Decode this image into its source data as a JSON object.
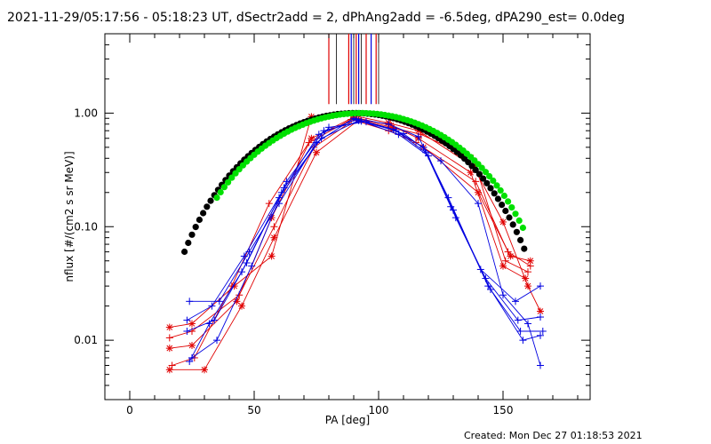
{
  "chart_data": {
    "type": "scatter",
    "title": "2021-11-29/05:17:56 - 05:18:23 UT, dSectr2add = 2, dPhAng2add = -6.5deg, dPA290_est=  0.0deg",
    "xlabel": "PA [deg]",
    "ylabel": "nflux [#/(cm2 s sr MeV)]",
    "xlim": [
      -10,
      185
    ],
    "ylim": [
      0.003,
      5
    ],
    "y_scale": "log",
    "grid": false,
    "x_ticks": [
      {
        "value": 0,
        "label": "0"
      },
      {
        "value": 50,
        "label": "50"
      },
      {
        "value": 100,
        "label": "100"
      },
      {
        "value": 150,
        "label": "150"
      }
    ],
    "y_ticks": [
      {
        "value": 0.01,
        "label": "0.01"
      },
      {
        "value": 0.1,
        "label": "0.10"
      },
      {
        "value": 1,
        "label": "1.00"
      }
    ],
    "vertical_lines": {
      "y_range": [
        1.2,
        5
      ],
      "red": [
        80,
        88,
        91,
        95,
        99
      ],
      "blue": [
        89,
        92,
        97
      ],
      "dark": [
        83,
        90,
        93,
        100
      ]
    },
    "colors": {
      "red": "#e00000",
      "blue": "#0000e0",
      "black": "#000000",
      "green": "#00e000"
    },
    "series": [
      {
        "color": "red",
        "x": [
          16,
          25,
          42,
          57,
          73,
          90,
          104,
          116,
          138,
          150,
          160,
          165
        ],
        "y": [
          0.013,
          0.014,
          0.03,
          0.055,
          0.93,
          0.95,
          0.82,
          0.7,
          0.34,
          0.11,
          0.03,
          0.018
        ]
      },
      {
        "color": "red",
        "x": [
          16,
          25,
          44,
          58,
          74,
          91,
          105,
          117,
          138,
          151,
          160
        ],
        "y": [
          0.0105,
          0.012,
          0.025,
          0.1,
          0.5,
          0.9,
          0.75,
          0.65,
          0.4,
          0.05,
          0.04
        ]
      },
      {
        "color": "red",
        "x": [
          16,
          25,
          43,
          57,
          73,
          90,
          105,
          116,
          137,
          150,
          159
        ],
        "y": [
          0.0085,
          0.009,
          0.022,
          0.12,
          0.6,
          0.92,
          0.78,
          0.6,
          0.3,
          0.045,
          0.035
        ]
      },
      {
        "color": "red",
        "x": [
          17,
          26,
          41,
          56,
          72,
          89,
          104,
          115,
          139,
          152,
          161
        ],
        "y": [
          0.006,
          0.007,
          0.03,
          0.16,
          0.55,
          0.88,
          0.7,
          0.55,
          0.25,
          0.06,
          0.045
        ]
      },
      {
        "color": "red",
        "x": [
          16,
          30,
          45,
          58,
          75,
          92,
          106,
          118,
          140,
          153,
          161
        ],
        "y": [
          0.0055,
          0.0055,
          0.02,
          0.08,
          0.45,
          0.87,
          0.72,
          0.5,
          0.2,
          0.055,
          0.05
        ]
      },
      {
        "color": "blue",
        "x": [
          24,
          36,
          48,
          60,
          75,
          90,
          104,
          116,
          128,
          141,
          155,
          165
        ],
        "y": [
          0.022,
          0.022,
          0.06,
          0.16,
          0.55,
          0.9,
          0.8,
          0.62,
          0.18,
          0.042,
          0.022,
          0.03
        ]
      },
      {
        "color": "blue",
        "x": [
          23,
          33,
          46,
          61,
          76,
          91,
          106,
          118,
          129,
          143,
          156,
          165
        ],
        "y": [
          0.015,
          0.02,
          0.055,
          0.2,
          0.65,
          0.88,
          0.72,
          0.5,
          0.15,
          0.035,
          0.015,
          0.016
        ]
      },
      {
        "color": "blue",
        "x": [
          23,
          34,
          47,
          62,
          77,
          92,
          107,
          119,
          130,
          144,
          157,
          166
        ],
        "y": [
          0.012,
          0.015,
          0.048,
          0.22,
          0.6,
          0.86,
          0.7,
          0.45,
          0.14,
          0.03,
          0.012,
          0.012
        ]
      },
      {
        "color": "blue",
        "x": [
          25,
          35,
          49,
          63,
          78,
          93,
          108,
          120,
          131,
          145,
          158,
          165
        ],
        "y": [
          0.007,
          0.01,
          0.045,
          0.25,
          0.7,
          0.85,
          0.65,
          0.42,
          0.12,
          0.028,
          0.01,
          0.011
        ]
      },
      {
        "color": "blue",
        "x": [
          24,
          32,
          45,
          60,
          80,
          95,
          110,
          125,
          140,
          150,
          160,
          165
        ],
        "y": [
          0.0065,
          0.014,
          0.04,
          0.18,
          0.75,
          0.84,
          0.66,
          0.38,
          0.16,
          0.025,
          0.014,
          0.006
        ]
      }
    ],
    "fits": [
      {
        "color": "black",
        "x_start": 22,
        "x_end": 159,
        "step": 1.5,
        "center": 90.5,
        "peak": 1.0,
        "exponent": 2.8
      },
      {
        "color": "green",
        "x_start": 35,
        "x_end": 158,
        "step": 1.5,
        "center": 93,
        "peak": 1.0,
        "exponent": 2.7
      }
    ]
  },
  "footer": {
    "created": "Created: Mon Dec 27 01:18:53 2021"
  }
}
